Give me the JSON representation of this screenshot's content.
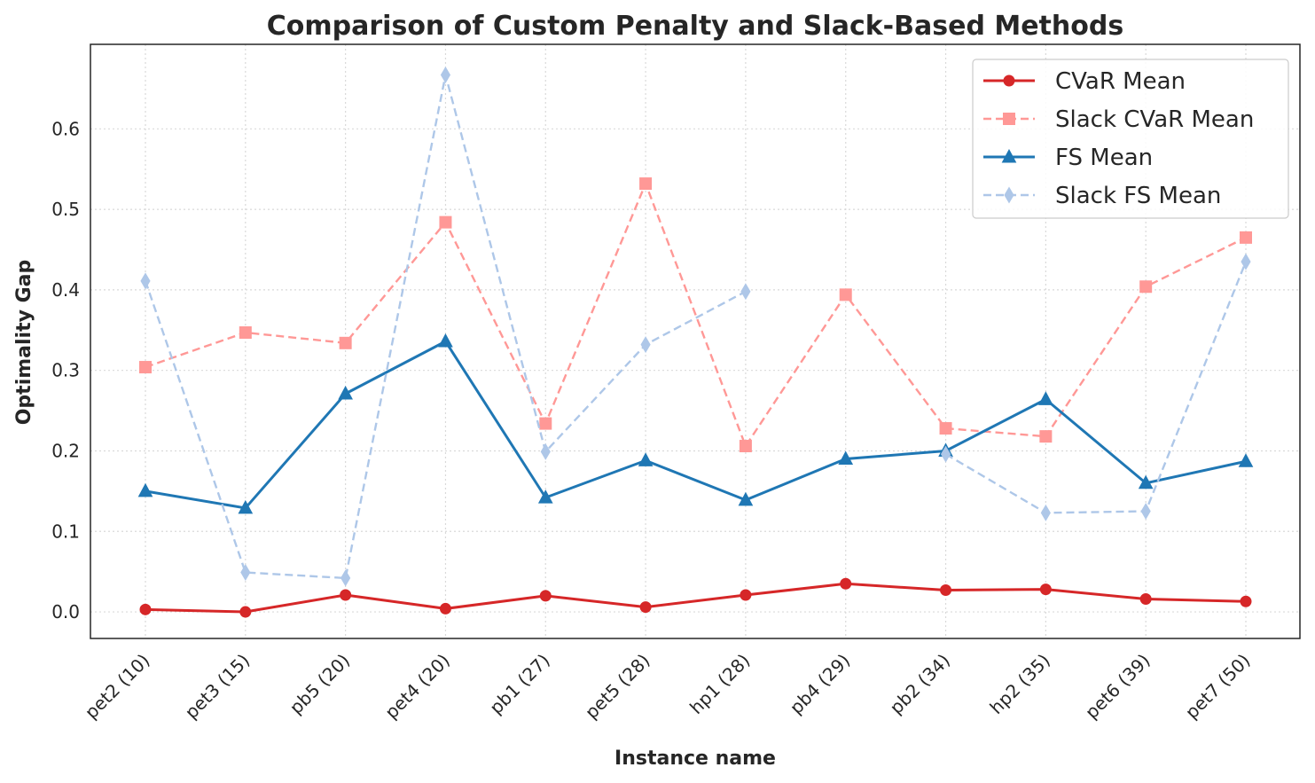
{
  "chart_data": {
    "type": "line",
    "title": "Comparison of Custom Penalty and Slack-Based Methods",
    "xlabel": "Instance name",
    "ylabel": "Optimality Gap",
    "categories": [
      "pet2 (10)",
      "pet3 (15)",
      "pb5 (20)",
      "pet4 (20)",
      "pb1 (27)",
      "pet5 (28)",
      "hp1 (28)",
      "pb4 (29)",
      "pb2 (34)",
      "hp2 (35)",
      "pet6 (39)",
      "pet7 (50)"
    ],
    "ylim": [
      -0.033,
      0.705
    ],
    "yticks": [
      0.0,
      0.1,
      0.2,
      0.3,
      0.4,
      0.5,
      0.6
    ],
    "ytick_labels": [
      "0.0",
      "0.1",
      "0.2",
      "0.3",
      "0.4",
      "0.5",
      "0.6"
    ],
    "grid": true,
    "legend_position": "top-right",
    "series": [
      {
        "name": "CVaR Mean",
        "values": [
          0.003,
          0.0,
          0.021,
          0.004,
          0.02,
          0.006,
          0.021,
          0.035,
          0.027,
          0.028,
          0.016,
          0.013
        ],
        "color": "#d62728",
        "line_style": "solid",
        "marker": "circle"
      },
      {
        "name": "Slack CVaR Mean",
        "values": [
          0.304,
          0.347,
          0.334,
          0.484,
          0.234,
          0.532,
          0.206,
          0.394,
          0.228,
          0.218,
          0.404,
          0.465
        ],
        "color": "#ff9896",
        "line_style": "dashed",
        "marker": "square"
      },
      {
        "name": "FS Mean",
        "values": [
          0.15,
          0.129,
          0.271,
          0.336,
          0.142,
          0.188,
          0.139,
          0.19,
          0.2,
          0.264,
          0.16,
          0.187
        ],
        "color": "#1f77b4",
        "line_style": "solid",
        "marker": "triangle"
      },
      {
        "name": "Slack FS Mean",
        "values": [
          0.411,
          0.049,
          0.042,
          0.667,
          0.199,
          0.332,
          0.398,
          null,
          0.196,
          0.123,
          0.125,
          0.435
        ],
        "color": "#aec7e8",
        "line_style": "dashed",
        "marker": "diamond"
      }
    ]
  }
}
